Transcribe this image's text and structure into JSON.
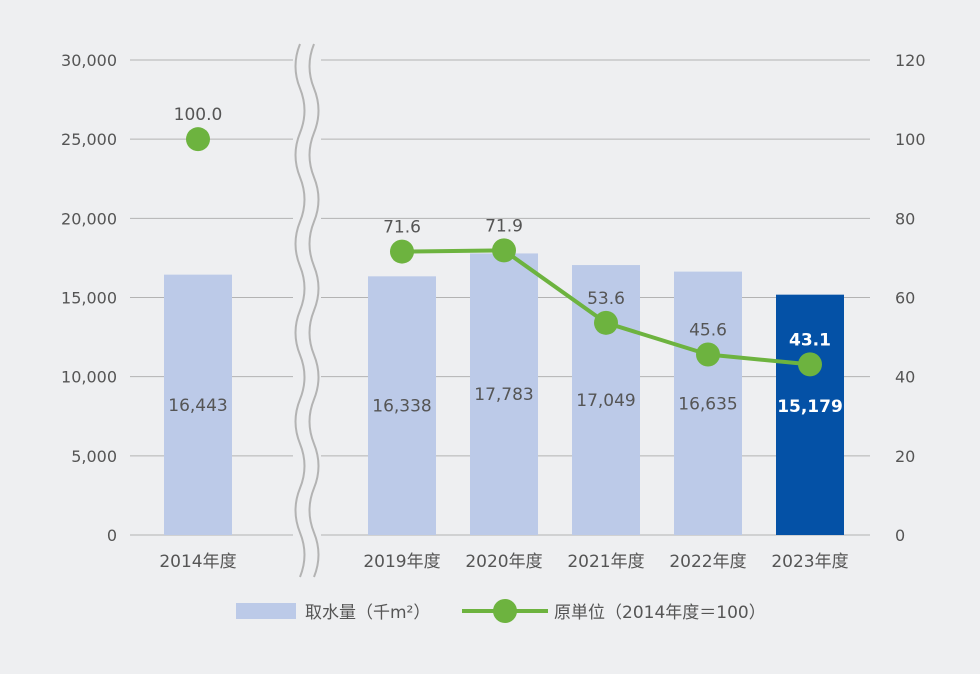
{
  "chart_data": {
    "type": "bar",
    "categories": [
      "2014年度",
      "2019年度",
      "2020年度",
      "2021年度",
      "2022年度",
      "2023年度"
    ],
    "series": [
      {
        "name": "取水量（千m²）",
        "type": "bar",
        "axis": "left",
        "values": [
          16443,
          16338,
          17783,
          17049,
          16635,
          15179
        ],
        "labels": [
          "16,443",
          "16,338",
          "17,783",
          "17,049",
          "16,635",
          "15,179"
        ]
      },
      {
        "name": "原単位（2014年度＝100）",
        "type": "line",
        "axis": "right",
        "values": [
          100.0,
          71.6,
          71.9,
          53.6,
          45.6,
          43.1
        ],
        "labels": [
          "100.0",
          "71.6",
          "71.9",
          "53.6",
          "45.6",
          "43.1"
        ]
      }
    ],
    "y_left": {
      "lim": [
        0,
        30000
      ],
      "ticks": [
        0,
        5000,
        10000,
        15000,
        20000,
        25000,
        30000
      ],
      "tick_labels": [
        "0",
        "5,000",
        "10,000",
        "15,000",
        "20,000",
        "25,000",
        "30,000"
      ]
    },
    "y_right": {
      "lim": [
        0,
        120
      ],
      "ticks": [
        0,
        20,
        40,
        60,
        80,
        100,
        120
      ],
      "tick_labels": [
        "0",
        "20",
        "40",
        "60",
        "80",
        "100",
        "120"
      ]
    },
    "axis_break": "between 2014年度 and 2019年度",
    "line_breaks_at_axis_break": true,
    "highlight_category": "2023年度",
    "grid": true,
    "legend_position": "bottom",
    "colors": {
      "background": "#eeeff1",
      "bar": "#bccae8",
      "bar_highlight": "#0451a6",
      "line": "#6db33f",
      "grid": "#b3b3b3",
      "text": "#555555",
      "highlight_text": "#ffffff"
    }
  }
}
